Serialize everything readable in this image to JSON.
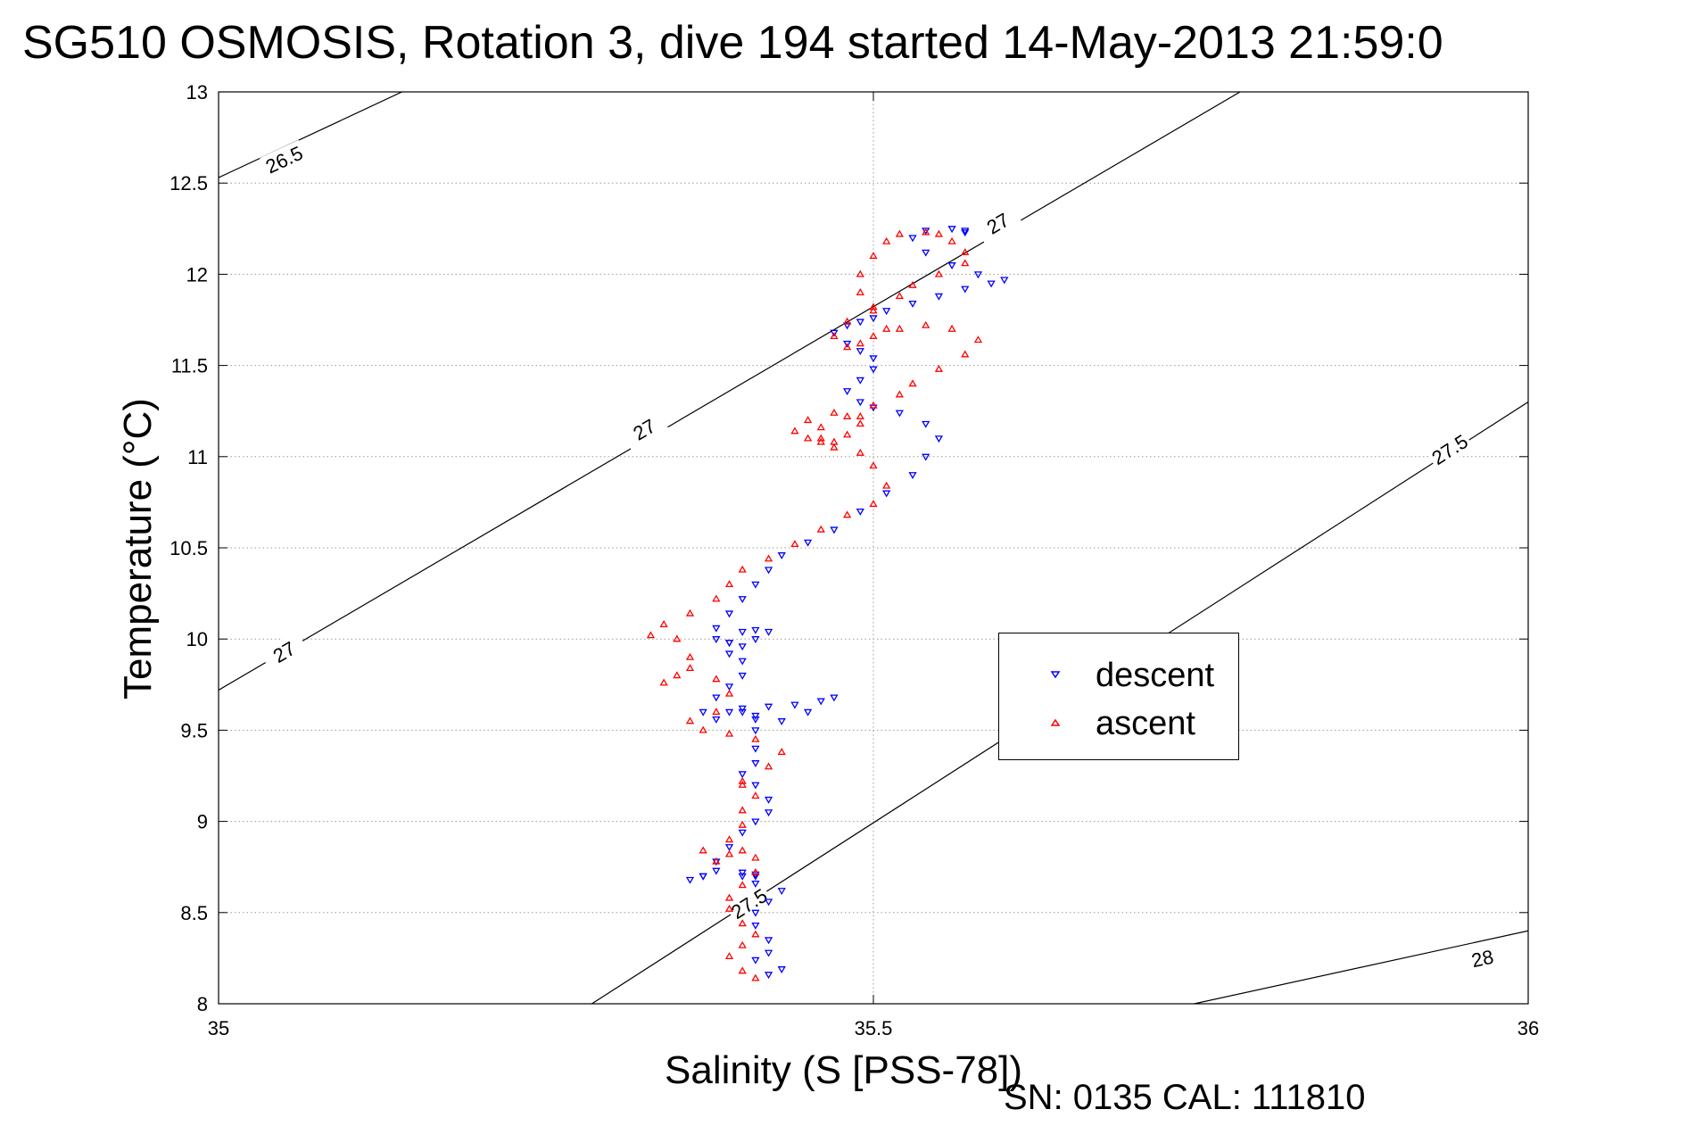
{
  "title": "SG510 OSMOSIS, Rotation 3, dive 194 started 14-May-2013 21:59:0",
  "footer": "SN: 0135  CAL: 111810",
  "colors": {
    "descent": "#0000ff",
    "ascent": "#ff0000",
    "contour": "#000000",
    "grid": "#9a9a9a"
  },
  "chart_data": {
    "type": "scatter",
    "title": "SG510 OSMOSIS, Rotation 3, dive 194 started 14-May-2013 21:59:0",
    "xlabel": "Salinity (S [PSS-78])",
    "ylabel": "Temperature (°C)",
    "xlim": [
      35,
      36
    ],
    "ylim": [
      8,
      13
    ],
    "xticks": [
      "35",
      "35.5",
      "36"
    ],
    "yticks": [
      "8",
      "8.5",
      "9",
      "9.5",
      "10",
      "10.5",
      "11",
      "11.5",
      "12",
      "12.5",
      "13"
    ],
    "grid": true,
    "legend_position": "center-right",
    "legend": [
      "descent",
      "ascent"
    ],
    "contours": [
      {
        "label": "26.5",
        "points": [
          [
            35.0,
            12.53
          ],
          [
            35.14,
            13.0
          ]
        ],
        "labels_at": [
          [
            35.05,
            12.63
          ]
        ]
      },
      {
        "label": "27",
        "points": [
          [
            35.0,
            9.72
          ],
          [
            35.78,
            13.0
          ]
        ],
        "labels_at": [
          [
            35.05,
            9.93
          ],
          [
            35.325,
            11.15
          ],
          [
            35.595,
            12.28
          ]
        ]
      },
      {
        "label": "27.5",
        "points": [
          [
            35.285,
            8.0
          ],
          [
            36.0,
            11.3
          ]
        ],
        "labels_at": [
          [
            35.405,
            8.55
          ],
          [
            35.94,
            11.04
          ]
        ]
      },
      {
        "label": "28",
        "points": [
          [
            35.745,
            8.0
          ],
          [
            36.0,
            8.4
          ]
        ],
        "labels_at": [
          [
            35.965,
            8.25
          ]
        ]
      }
    ],
    "series": [
      {
        "name": "descent",
        "marker": "triangle-down",
        "color": "#0000ff",
        "x": [
          35.42,
          35.43,
          35.41,
          35.42,
          35.42,
          35.41,
          35.41,
          35.42,
          35.43,
          35.41,
          35.4,
          35.4,
          35.41,
          35.41,
          35.38,
          35.37,
          35.36,
          35.37,
          35.38,
          35.39,
          35.4,
          35.41,
          35.42,
          35.42,
          35.41,
          35.4,
          35.41,
          35.41,
          35.41,
          35.41,
          35.4,
          35.4,
          35.42,
          35.44,
          35.46,
          35.47,
          35.45,
          35.43,
          35.41,
          35.39,
          35.38,
          35.37,
          35.38,
          35.39,
          35.4,
          35.4,
          35.39,
          35.39,
          35.4,
          35.41,
          35.42,
          35.41,
          35.4,
          35.39,
          35.38,
          35.38,
          35.39,
          35.4,
          35.41,
          35.42,
          35.43,
          35.45,
          35.47,
          35.49,
          35.51,
          35.53,
          35.54,
          35.55,
          35.54,
          35.52,
          35.5,
          35.49,
          35.48,
          35.49,
          35.5,
          35.5,
          35.49,
          35.48,
          35.47,
          35.48,
          35.49,
          35.5,
          35.51,
          35.53,
          35.55,
          35.57,
          35.59,
          35.6,
          35.58,
          35.56,
          35.54,
          35.53,
          35.54,
          35.56,
          35.57,
          35.57
        ],
        "y": [
          8.16,
          8.19,
          8.24,
          8.28,
          8.35,
          8.43,
          8.5,
          8.56,
          8.62,
          8.66,
          8.7,
          8.72,
          8.7,
          8.71,
          8.73,
          8.7,
          8.68,
          8.7,
          8.78,
          8.86,
          8.94,
          9.0,
          9.05,
          9.12,
          9.2,
          9.26,
          9.32,
          9.4,
          9.5,
          9.56,
          9.6,
          9.62,
          9.63,
          9.64,
          9.66,
          9.68,
          9.6,
          9.55,
          9.58,
          9.6,
          9.56,
          9.6,
          9.68,
          9.74,
          9.8,
          9.88,
          9.92,
          9.98,
          10.04,
          10.05,
          10.04,
          10.0,
          9.96,
          9.98,
          10.0,
          10.06,
          10.14,
          10.22,
          10.3,
          10.38,
          10.46,
          10.53,
          10.6,
          10.7,
          10.8,
          10.9,
          11.0,
          11.1,
          11.18,
          11.24,
          11.27,
          11.3,
          11.36,
          11.42,
          11.48,
          11.54,
          11.58,
          11.62,
          11.68,
          11.72,
          11.74,
          11.76,
          11.8,
          11.84,
          11.88,
          11.92,
          11.95,
          11.97,
          12.0,
          12.05,
          12.12,
          12.2,
          12.24,
          12.25,
          12.24,
          12.23
        ]
      },
      {
        "name": "ascent",
        "marker": "triangle-up",
        "color": "#ff0000",
        "x": [
          35.41,
          35.4,
          35.39,
          35.4,
          35.41,
          35.4,
          35.39,
          35.39,
          35.4,
          35.41,
          35.41,
          35.4,
          35.39,
          35.38,
          35.37,
          35.39,
          35.4,
          35.4,
          35.41,
          35.4,
          35.4,
          35.42,
          35.43,
          35.41,
          35.39,
          35.37,
          35.36,
          35.38,
          35.39,
          35.38,
          35.36,
          35.35,
          35.34,
          35.36,
          35.35,
          35.33,
          35.34,
          35.36,
          35.38,
          35.39,
          35.4,
          35.42,
          35.44,
          35.46,
          35.48,
          35.5,
          35.51,
          35.5,
          35.49,
          35.47,
          35.46,
          35.45,
          35.44,
          35.45,
          35.47,
          35.49,
          35.49,
          35.48,
          35.47,
          35.46,
          35.46,
          35.48,
          35.5,
          35.52,
          35.53,
          35.55,
          35.57,
          35.58,
          35.56,
          35.54,
          35.52,
          35.5,
          35.49,
          35.48,
          35.47,
          35.48,
          35.5,
          35.52,
          35.53,
          35.55,
          35.57,
          35.57,
          35.56,
          35.55,
          35.54,
          35.52,
          35.51,
          35.5,
          35.49,
          35.49,
          35.5,
          35.51
        ],
        "y": [
          8.14,
          8.18,
          8.26,
          8.32,
          8.38,
          8.44,
          8.52,
          8.58,
          8.65,
          8.72,
          8.8,
          8.84,
          8.82,
          8.78,
          8.84,
          8.9,
          8.98,
          9.06,
          9.14,
          9.2,
          9.22,
          9.3,
          9.38,
          9.45,
          9.48,
          9.5,
          9.55,
          9.6,
          9.7,
          9.78,
          9.84,
          9.8,
          9.76,
          9.9,
          10.0,
          10.02,
          10.08,
          10.14,
          10.22,
          10.3,
          10.38,
          10.44,
          10.52,
          10.6,
          10.68,
          10.74,
          10.84,
          10.95,
          11.02,
          11.05,
          11.08,
          11.1,
          11.14,
          11.2,
          11.24,
          11.22,
          11.18,
          11.12,
          11.08,
          11.1,
          11.16,
          11.22,
          11.28,
          11.34,
          11.4,
          11.48,
          11.56,
          11.64,
          11.7,
          11.72,
          11.7,
          11.66,
          11.62,
          11.6,
          11.66,
          11.74,
          11.82,
          11.88,
          11.94,
          12.0,
          12.06,
          12.12,
          12.18,
          12.22,
          12.23,
          12.22,
          12.18,
          12.1,
          12.0,
          11.9,
          11.8,
          11.7
        ]
      }
    ]
  }
}
